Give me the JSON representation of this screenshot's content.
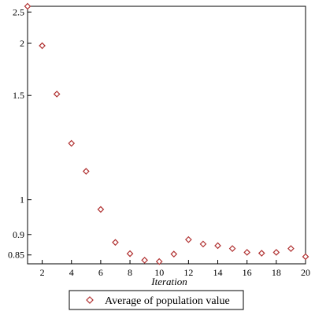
{
  "chart_data": {
    "type": "scatter",
    "title": "",
    "xlabel": "Iteration",
    "ylabel": "",
    "xlim": [
      1,
      20
    ],
    "ylim": [
      0.83,
      2.62
    ],
    "y_scale": "reciprocal",
    "x_ticks": [
      2,
      4,
      6,
      8,
      10,
      12,
      14,
      16,
      18,
      20
    ],
    "x_tick_labels": [
      "2",
      "4",
      "6",
      "8",
      "10",
      "12",
      "14",
      "16",
      "18",
      "20"
    ],
    "y_ticks": [
      0.85,
      0.9,
      1,
      1.5,
      2,
      2.5
    ],
    "y_tick_labels": [
      "0.85",
      "0.9",
      "1",
      "1.5",
      "2",
      "2.5"
    ],
    "grid": false,
    "legend_position": "bottom",
    "marker": "diamond",
    "marker_color": "#b03030",
    "series": [
      {
        "name": "Average of population value",
        "x": [
          1,
          2,
          3,
          4,
          5,
          6,
          7,
          8,
          9,
          10,
          11,
          12,
          13,
          14,
          15,
          16,
          17,
          18,
          19,
          20
        ],
        "y": [
          2.62,
          1.97,
          1.51,
          1.22,
          1.1,
          0.97,
          0.88,
          0.853,
          0.838,
          0.835,
          0.852,
          0.887,
          0.876,
          0.872,
          0.865,
          0.856,
          0.854,
          0.856,
          0.865,
          0.846
        ]
      }
    ]
  }
}
